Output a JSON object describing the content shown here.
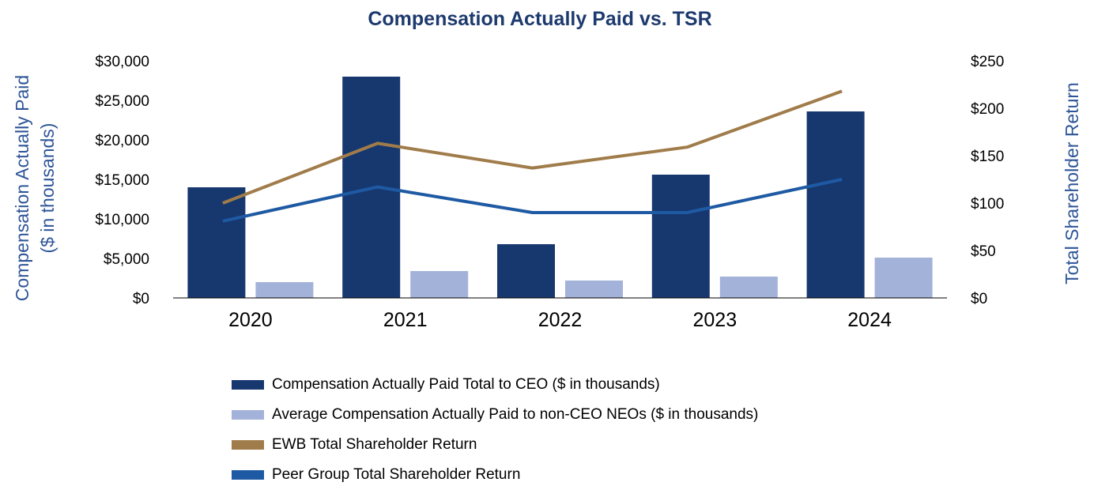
{
  "chart_data": {
    "type": "bar",
    "title": "Compensation Actually Paid vs. TSR",
    "categories": [
      "2020",
      "2021",
      "2022",
      "2023",
      "2024"
    ],
    "y_left": {
      "label_lines": [
        "Compensation Actually Paid",
        "($ in thousands)"
      ],
      "ticks": [
        0,
        5000,
        10000,
        15000,
        20000,
        25000,
        30000
      ],
      "tick_labels": [
        "$0",
        "$5,000",
        "$10,000",
        "$15,000",
        "$20,000",
        "$25,000",
        "$30,000"
      ],
      "ylim": [
        0,
        30000
      ]
    },
    "y_right": {
      "label": "Total Shareholder Return",
      "ticks": [
        0,
        50,
        100,
        150,
        200,
        250
      ],
      "tick_labels": [
        "$0",
        "$50",
        "$100",
        "$150",
        "$200",
        "$250"
      ],
      "ylim": [
        0,
        250
      ]
    },
    "series": [
      {
        "name": "Compensation Actually Paid Total to CEO ($ in thousands)",
        "type": "bar",
        "axis": "left",
        "color": "#17376f",
        "values": [
          14000,
          28000,
          6800,
          15600,
          23600
        ]
      },
      {
        "name": "Average Compensation Actually Paid to non-CEO NEOs ($ in thousands)",
        "type": "bar",
        "axis": "left",
        "color": "#a3b2d9",
        "values": [
          2000,
          3400,
          2200,
          2700,
          5100
        ]
      },
      {
        "name": "EWB Total Shareholder Return",
        "type": "line",
        "axis": "right",
        "color": "#a07c4a",
        "values": [
          100,
          163,
          137,
          159,
          218
        ]
      },
      {
        "name": "Peer Group Total Shareholder Return",
        "type": "line",
        "axis": "right",
        "color": "#1e5aa3",
        "values": [
          81,
          117,
          90,
          90,
          125
        ]
      }
    ],
    "legend": {
      "placement": "bottom",
      "entries": [
        "Compensation Actually Paid Total to CEO ($ in thousands)",
        "Average Compensation Actually Paid to non-CEO NEOs ($ in thousands)",
        "EWB Total Shareholder Return",
        "Peer Group Total Shareholder Return"
      ]
    }
  }
}
